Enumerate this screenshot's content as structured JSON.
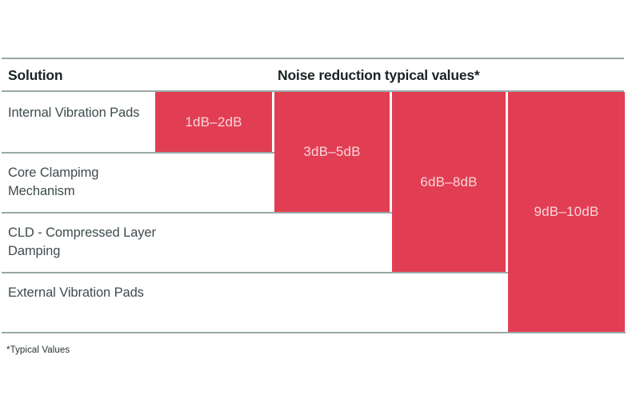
{
  "header": {
    "solution": "Solution",
    "values_title": "Noise reduction typical values*"
  },
  "rows": [
    {
      "label": "Internal Vibration Pads",
      "value": "1dB–2dB"
    },
    {
      "label": "Core Clampimg Mechanism",
      "value": "3dB–5dB"
    },
    {
      "label": "CLD - Compressed Layer Damping",
      "value": "6dB–8dB"
    },
    {
      "label": "External Vibration Pads",
      "value": "9dB–10dB"
    }
  ],
  "footnote": "*Typical Values",
  "colors": {
    "bar_fill": "#e23e53",
    "bar_label_text": "#f8d6da",
    "divider_line": "#9aa7a9",
    "header_text": "#1b2325",
    "row_label_text": "#3f4b4e",
    "background": "#ffffff"
  },
  "chart_data": {
    "type": "bar",
    "orientation": "horizontal-stepped",
    "title": "Noise reduction typical values*",
    "categories": [
      "Internal Vibration Pads",
      "Core Clampimg Mechanism",
      "CLD - Compressed Layer Damping",
      "External Vibration Pads"
    ],
    "values": [
      [
        1,
        2
      ],
      [
        3,
        5
      ],
      [
        6,
        8
      ],
      [
        9,
        10
      ]
    ],
    "value_labels": [
      "1dB–2dB",
      "3dB–5dB",
      "6dB–8dB",
      "9dB–10dB"
    ],
    "unit": "dB",
    "footnote": "*Typical Values",
    "layout_hints": {
      "bars_anchored_below_header": true,
      "bar_for_row_n_spans_rows_1_to_n": true,
      "grid": false,
      "legend": false
    }
  }
}
